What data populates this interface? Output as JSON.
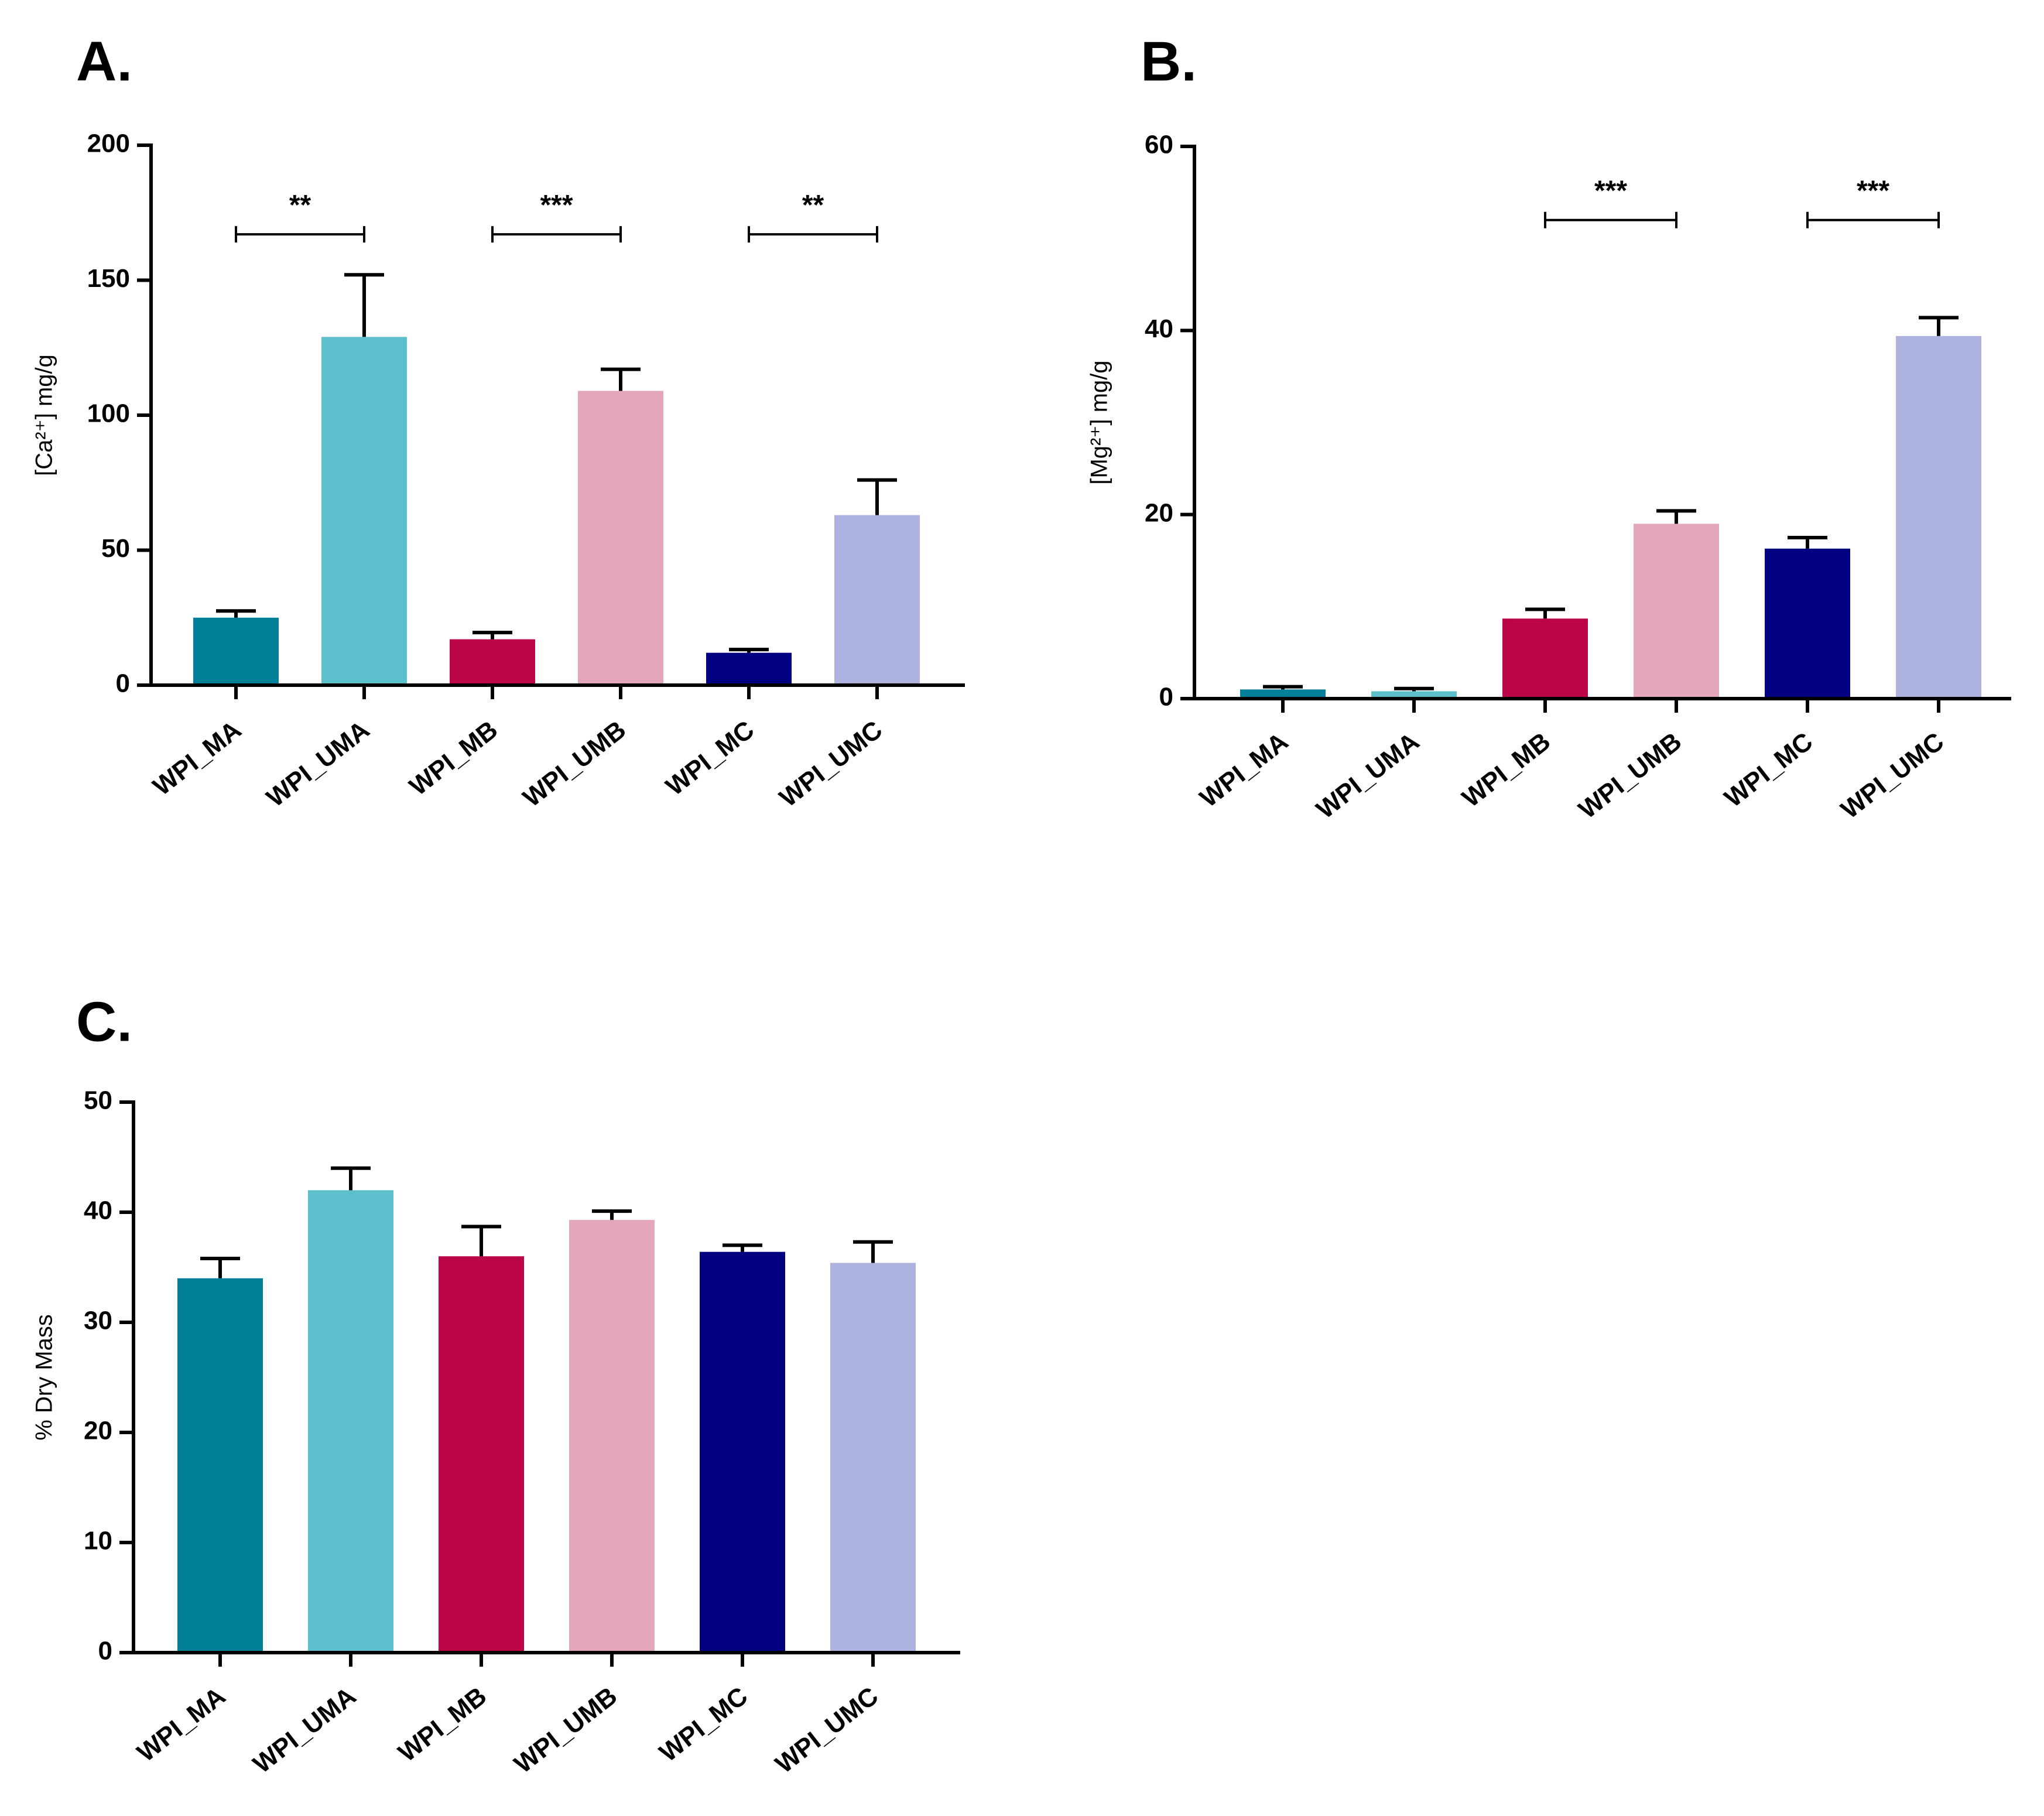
{
  "colors": {
    "WPI_MA": "#007f99",
    "WPI_UMA": "#5ebfcc",
    "WPI_MB": "#bc0549",
    "WPI_UMB": "#e3a6ba",
    "WPI_MC": "#000080",
    "WPI_UMC": "#aeb3e0"
  },
  "chart_data": [
    {
      "panel": "A.",
      "type": "bar",
      "categories": [
        "WPI_MA",
        "WPI_UMA",
        "WPI_MB",
        "WPI_UMB",
        "WPI_MC",
        "WPI_UMC"
      ],
      "values": [
        25,
        129,
        17,
        109,
        12,
        63
      ],
      "errors": [
        2.5,
        23,
        2.5,
        8,
        1.2,
        13
      ],
      "ylabel": "[Ca²⁺] mg/g",
      "ylim": [
        0,
        200
      ],
      "yticks": [
        "0",
        "50",
        "100",
        "150",
        "200"
      ],
      "significance": [
        {
          "from": "WPI_MA",
          "to": "WPI_UMA",
          "value": 167,
          "label": "**"
        },
        {
          "from": "WPI_MB",
          "to": "WPI_UMB",
          "value": 167,
          "label": "***"
        },
        {
          "from": "WPI_MC",
          "to": "WPI_UMC",
          "value": 167,
          "label": "**"
        }
      ]
    },
    {
      "panel": "B.",
      "type": "bar",
      "categories": [
        "WPI_MA",
        "WPI_UMA",
        "WPI_MB",
        "WPI_UMB",
        "WPI_MC",
        "WPI_UMC"
      ],
      "values": [
        1.0,
        0.8,
        8.7,
        19.0,
        16.3,
        39.4
      ],
      "errors": [
        0.3,
        0.3,
        1.0,
        1.4,
        1.2,
        2.0
      ],
      "ylabel": "[Mg²⁺] mg/g",
      "ylim": [
        0,
        60
      ],
      "yticks": [
        "0",
        "20",
        "40",
        "60"
      ],
      "significance": [
        {
          "from": "WPI_MB",
          "to": "WPI_UMB",
          "value": 52,
          "label": "***"
        },
        {
          "from": "WPI_MC",
          "to": "WPI_UMC",
          "value": 52,
          "label": "***"
        }
      ]
    },
    {
      "panel": "C.",
      "type": "bar",
      "categories": [
        "WPI_MA",
        "WPI_UMA",
        "WPI_MB",
        "WPI_UMB",
        "WPI_MC",
        "WPI_UMC"
      ],
      "values": [
        34,
        42,
        36,
        39.3,
        36.4,
        35.4
      ],
      "errors": [
        1.8,
        2.0,
        2.7,
        0.8,
        0.6,
        1.9
      ],
      "ylabel": "% Dry Mass",
      "ylim": [
        0,
        50
      ],
      "yticks": [
        "0",
        "10",
        "20",
        "30",
        "40",
        "50"
      ],
      "significance": []
    }
  ]
}
